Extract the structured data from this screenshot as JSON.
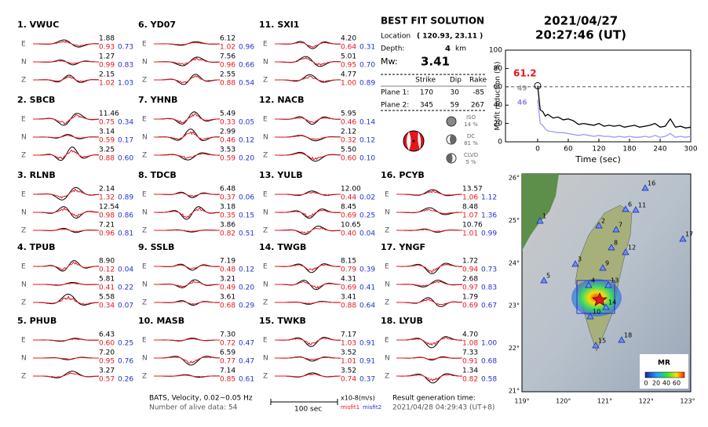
{
  "stations": [
    {
      "label": "1.  VWUC",
      "traces": [
        {
          "component": "E",
          "amplitude": "1.88",
          "misfit1": "0.93",
          "misfit2": "0.73"
        },
        {
          "component": "N",
          "amplitude": "1.27",
          "misfit1": "0.99",
          "misfit2": "0.83"
        },
        {
          "component": "Z",
          "amplitude": "2.15",
          "misfit1": "1.02",
          "misfit2": "1.03"
        }
      ]
    },
    {
      "label": "2.  SBCB",
      "traces": [
        {
          "component": "E",
          "amplitude": "11.46",
          "misfit1": "0.75",
          "misfit2": "0.34"
        },
        {
          "component": "N",
          "amplitude": "3.14",
          "misfit1": "0.59",
          "misfit2": "0.17"
        },
        {
          "component": "Z",
          "amplitude": "3.25",
          "misfit1": "0.88",
          "misfit2": "0.60"
        }
      ]
    },
    {
      "label": "3.  RLNB",
      "traces": [
        {
          "component": "E",
          "amplitude": "2.14",
          "misfit1": "1.32",
          "misfit2": "0.89"
        },
        {
          "component": "N",
          "amplitude": "12.54",
          "misfit1": "0.98",
          "misfit2": "0.86"
        },
        {
          "component": "Z",
          "amplitude": "7.21",
          "misfit1": "0.96",
          "misfit2": "0.81"
        }
      ]
    },
    {
      "label": "4.  TPUB",
      "traces": [
        {
          "component": "E",
          "amplitude": "8.90",
          "misfit1": "0.12",
          "misfit2": "0.04"
        },
        {
          "component": "N",
          "amplitude": "5.81",
          "misfit1": "0.41",
          "misfit2": "0.22"
        },
        {
          "component": "Z",
          "amplitude": "5.58",
          "misfit1": "0.34",
          "misfit2": "0.07"
        }
      ]
    },
    {
      "label": "5.  PHUB",
      "traces": [
        {
          "component": "E",
          "amplitude": "6.43",
          "misfit1": "0.60",
          "misfit2": "0.25"
        },
        {
          "component": "N",
          "amplitude": "7.20",
          "misfit1": "0.95",
          "misfit2": "0.76"
        },
        {
          "component": "Z",
          "amplitude": "3.27",
          "misfit1": "0.57",
          "misfit2": "0.26"
        }
      ]
    },
    {
      "label": "6.  YD07",
      "traces": [
        {
          "component": "E",
          "amplitude": "6.12",
          "misfit1": "1.02",
          "misfit2": "0.96"
        },
        {
          "component": "N",
          "amplitude": "7.56",
          "misfit1": "0.96",
          "misfit2": "0.66"
        },
        {
          "component": "Z",
          "amplitude": "2.55",
          "misfit1": "0.88",
          "misfit2": "0.54"
        }
      ]
    },
    {
      "label": "7.  YHNB",
      "traces": [
        {
          "component": "E",
          "amplitude": "5.49",
          "misfit1": "0.33",
          "misfit2": "0.05"
        },
        {
          "component": "N",
          "amplitude": "2.99",
          "misfit1": "0.46",
          "misfit2": "0.12"
        },
        {
          "component": "Z",
          "amplitude": "3.53",
          "misfit1": "0.59",
          "misfit2": "0.20"
        }
      ]
    },
    {
      "label": "8.  TDCB",
      "traces": [
        {
          "component": "E",
          "amplitude": "6.48",
          "misfit1": "0.37",
          "misfit2": "0.06"
        },
        {
          "component": "N",
          "amplitude": "3.18",
          "misfit1": "0.35",
          "misfit2": "0.15"
        },
        {
          "component": "Z",
          "amplitude": "3.86",
          "misfit1": "0.82",
          "misfit2": "0.51"
        }
      ]
    },
    {
      "label": "9.  SSLB",
      "traces": [
        {
          "component": "E",
          "amplitude": "7.19",
          "misfit1": "0.48",
          "misfit2": "0.12"
        },
        {
          "component": "N",
          "amplitude": "3.21",
          "misfit1": "0.49",
          "misfit2": "0.20"
        },
        {
          "component": "Z",
          "amplitude": "3.61",
          "misfit1": "0.68",
          "misfit2": "0.29"
        }
      ]
    },
    {
      "label": "10. MASB",
      "traces": [
        {
          "component": "E",
          "amplitude": "7.30",
          "misfit1": "0.72",
          "misfit2": "0.47"
        },
        {
          "component": "N",
          "amplitude": "6.59",
          "misfit1": "0.77",
          "misfit2": "0.47"
        },
        {
          "component": "Z",
          "amplitude": "7.14",
          "misfit1": "0.85",
          "misfit2": "0.61"
        }
      ]
    },
    {
      "label": "11. SXI1",
      "traces": [
        {
          "component": "E",
          "amplitude": "4.20",
          "misfit1": "0.64",
          "misfit2": "0.31"
        },
        {
          "component": "N",
          "amplitude": "5.01",
          "misfit1": "0.95",
          "misfit2": "0.70"
        },
        {
          "component": "Z",
          "amplitude": "4.77",
          "misfit1": "1.00",
          "misfit2": "0.89"
        }
      ]
    },
    {
      "label": "12. NACB",
      "traces": [
        {
          "component": "E",
          "amplitude": "5.95",
          "misfit1": "0.46",
          "misfit2": "0.14"
        },
        {
          "component": "N",
          "amplitude": "2.12",
          "misfit1": "0.32",
          "misfit2": "0.12"
        },
        {
          "component": "Z",
          "amplitude": "5.50",
          "misfit1": "0.60",
          "misfit2": "0.10"
        }
      ]
    },
    {
      "label": "13. YULB",
      "traces": [
        {
          "component": "E",
          "amplitude": "12.00",
          "misfit1": "0.44",
          "misfit2": "0.02"
        },
        {
          "component": "N",
          "amplitude": "8.45",
          "misfit1": "0.69",
          "misfit2": "0.25"
        },
        {
          "component": "Z",
          "amplitude": "10.65",
          "misfit1": "0.40",
          "misfit2": "0.04"
        }
      ]
    },
    {
      "label": "14. TWGB",
      "traces": [
        {
          "component": "E",
          "amplitude": "8.15",
          "misfit1": "0.79",
          "misfit2": "0.39"
        },
        {
          "component": "N",
          "amplitude": "4.31",
          "misfit1": "0.69",
          "misfit2": "0.41"
        },
        {
          "component": "Z",
          "amplitude": "3.41",
          "misfit1": "0.88",
          "misfit2": "0.64"
        }
      ]
    },
    {
      "label": "15. TWKB",
      "traces": [
        {
          "component": "E",
          "amplitude": "7.17",
          "misfit1": "1.03",
          "misfit2": "0.91"
        },
        {
          "component": "N",
          "amplitude": "3.52",
          "misfit1": "1.01",
          "misfit2": "0.91"
        },
        {
          "component": "Z",
          "amplitude": "3.52",
          "misfit1": "0.74",
          "misfit2": "0.37"
        }
      ]
    },
    {
      "label": "16. PCYB",
      "traces": [
        {
          "component": "E",
          "amplitude": "13.57",
          "misfit1": "1.06",
          "misfit2": "1.12"
        },
        {
          "component": "N",
          "amplitude": "8.48",
          "misfit1": "1.07",
          "misfit2": "1.36"
        },
        {
          "component": "Z",
          "amplitude": "10.76",
          "misfit1": "1.01",
          "misfit2": "0.99"
        }
      ]
    },
    {
      "label": "17. YNGF",
      "traces": [
        {
          "component": "E",
          "amplitude": "1.72",
          "misfit1": "0.94",
          "misfit2": "0.73"
        },
        {
          "component": "N",
          "amplitude": "2.68",
          "misfit1": "0.97",
          "misfit2": "0.83"
        },
        {
          "component": "Z",
          "amplitude": "1.79",
          "misfit1": "0.69",
          "misfit2": "0.67"
        }
      ]
    },
    {
      "label": "18. LYUB",
      "traces": [
        {
          "component": "E",
          "amplitude": "4.70",
          "misfit1": "1.08",
          "misfit2": "1.00"
        },
        {
          "component": "N",
          "amplitude": "7.33",
          "misfit1": "0.91",
          "misfit2": "0.68"
        },
        {
          "component": "Z",
          "amplitude": "1.34",
          "misfit1": "0.82",
          "misfit2": "0.58"
        }
      ]
    }
  ],
  "footer": {
    "info": "BATS, Velocity, 0.02~0.05 Hz",
    "alive": "Number of alive data: 54",
    "scale": "100 sec",
    "unit": "x10-8(m/s)",
    "misfit1": "misfit1",
    "misfit2": "misfit2",
    "gen_label": "Result generation time:",
    "gen_time": "2021/04/28 04:29:43 (UT+8)"
  },
  "solution": {
    "title": "BEST FIT SOLUTION",
    "location_label": "Location",
    "location": "( 120.93,  23.11 )",
    "depth_label": "Depth:",
    "depth": "4",
    "depth_unit": "km",
    "mw_label": "Mw:",
    "mw": "3.41",
    "headers": [
      "Strike",
      "Dip",
      "Rake"
    ],
    "planes": [
      {
        "label": "Plane 1:",
        "values": [
          "170",
          "30",
          "-85"
        ]
      },
      {
        "label": "Plane 2:",
        "values": [
          "345",
          "59",
          "267"
        ]
      }
    ],
    "components": [
      {
        "name": "ISO",
        "pct": "14 %"
      },
      {
        "name": "DC",
        "pct": "81 %"
      },
      {
        "name": "CLVD",
        "pct": "5 %"
      }
    ]
  },
  "date": "2021/04/27",
  "time": "20:27:46  (UT)",
  "misfit_chart": {
    "ylabel": "Misfit reduction (%)",
    "xlabel": "Time (sec)",
    "xlim": [
      -63,
      300
    ],
    "ylim": [
      0,
      100
    ],
    "xticks": [
      0,
      60,
      120,
      180,
      240,
      300
    ],
    "yticks": [
      0,
      20,
      40,
      60,
      80,
      100
    ],
    "ref_line": 60,
    "annotations": [
      {
        "text": "61.2",
        "color": "#e8141e"
      },
      {
        "text": "49",
        "color": "#999999"
      },
      {
        "text": "46",
        "color": "#8a8af0"
      }
    ],
    "x": [
      0,
      5,
      10,
      15,
      20,
      30,
      40,
      50,
      60,
      70,
      80,
      90,
      100,
      110,
      120,
      130,
      140,
      150,
      160,
      170,
      180,
      190,
      200,
      210,
      220,
      230,
      240,
      250,
      260,
      270,
      280,
      290,
      300
    ],
    "series": [
      {
        "color": "#000000",
        "values": [
          61.2,
          35,
          33,
          28,
          30,
          26,
          27,
          24,
          25,
          23,
          19,
          20,
          19,
          18,
          20,
          17,
          18,
          17,
          18,
          16,
          17,
          18,
          16,
          17,
          18,
          20,
          16,
          17,
          25,
          16,
          17,
          15,
          16
        ]
      },
      {
        "color": "#9a9af5",
        "values": [
          46,
          20,
          18,
          14,
          12,
          11,
          10,
          10,
          9,
          8,
          7,
          8,
          7,
          6,
          7,
          6,
          6,
          5,
          6,
          5,
          6,
          5,
          5,
          6,
          5,
          7,
          5,
          6,
          9,
          5,
          6,
          5,
          6
        ]
      }
    ]
  },
  "map": {
    "lat_ticks": [
      "26°",
      "25°",
      "24°",
      "23°",
      "22°",
      "21°"
    ],
    "lon_ticks": [
      "119°",
      "120°",
      "121°",
      "122°",
      "123°"
    ],
    "stations": [
      "1",
      "2",
      "3",
      "4",
      "5",
      "6",
      "7",
      "8",
      "9",
      "10",
      "11",
      "12",
      "13",
      "14",
      "15",
      "16",
      "17",
      "18"
    ],
    "colorbar_title": "MR",
    "colorbar_ticks": [
      "0",
      "20",
      "40",
      "60"
    ]
  }
}
